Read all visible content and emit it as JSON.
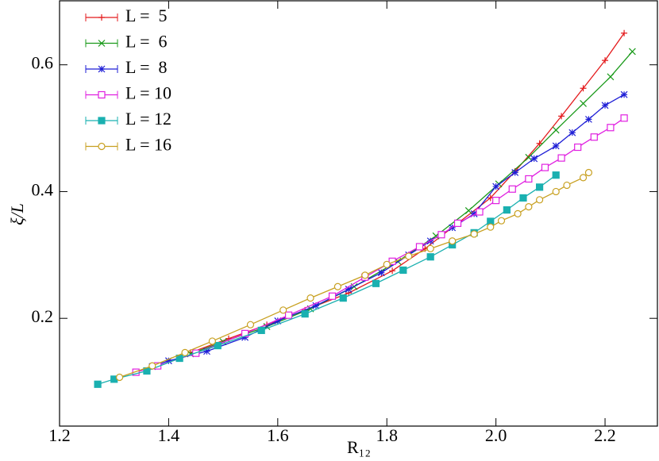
{
  "chart_data": {
    "type": "line",
    "x_label": "R₁₂",
    "y_label": "ξ/L",
    "xlim": [
      1.2,
      2.296
    ],
    "ylim": [
      0.03,
      0.701
    ],
    "xticks": [
      1.2,
      1.4,
      1.6,
      1.8,
      {
        "value": 2,
        "label": "2.0"
      },
      2.2
    ],
    "yticks": [
      0.2,
      0.4,
      0.6
    ],
    "legend": "upper-left",
    "series": [
      {
        "name": "L =  5",
        "color": "#e41a1c",
        "marker": "plus",
        "x": [
          1.44,
          1.51,
          1.58,
          1.65,
          1.73,
          1.81,
          1.87,
          1.93,
          1.99,
          2.035,
          2.08,
          2.12,
          2.16,
          2.2,
          2.235
        ],
        "values": [
          0.146,
          0.168,
          0.19,
          0.213,
          0.24,
          0.275,
          0.31,
          0.35,
          0.39,
          0.432,
          0.476,
          0.519,
          0.563,
          0.607,
          0.65
        ]
      },
      {
        "name": "L =  6",
        "color": "#1a9a1a",
        "marker": "cross",
        "x": [
          1.44,
          1.5,
          1.58,
          1.66,
          1.74,
          1.82,
          1.89,
          1.95,
          2.005,
          2.06,
          2.11,
          2.16,
          2.21,
          2.25
        ],
        "values": [
          0.144,
          0.163,
          0.187,
          0.215,
          0.25,
          0.29,
          0.33,
          0.37,
          0.412,
          0.454,
          0.497,
          0.539,
          0.581,
          0.621
        ]
      },
      {
        "name": "L =  8",
        "color": "#1f1fd6",
        "marker": "star",
        "x": [
          1.37,
          1.4,
          1.47,
          1.54,
          1.6,
          1.67,
          1.73,
          1.79,
          1.84,
          1.88,
          1.92,
          1.96,
          2.0,
          2.035,
          2.07,
          2.11,
          2.14,
          2.17,
          2.2,
          2.235
        ],
        "values": [
          0.124,
          0.133,
          0.148,
          0.17,
          0.196,
          0.22,
          0.246,
          0.272,
          0.3,
          0.322,
          0.343,
          0.365,
          0.408,
          0.43,
          0.452,
          0.472,
          0.493,
          0.514,
          0.536,
          0.553
        ]
      },
      {
        "name": "L = 10",
        "color": "#e020e0",
        "marker": "square-open",
        "x": [
          1.34,
          1.38,
          1.45,
          1.54,
          1.62,
          1.7,
          1.76,
          1.81,
          1.86,
          1.9,
          1.93,
          1.97,
          2.0,
          2.03,
          2.06,
          2.09,
          2.12,
          2.15,
          2.18,
          2.21,
          2.235
        ],
        "values": [
          0.115,
          0.125,
          0.145,
          0.176,
          0.205,
          0.235,
          0.265,
          0.29,
          0.313,
          0.332,
          0.35,
          0.368,
          0.386,
          0.404,
          0.42,
          0.438,
          0.453,
          0.47,
          0.486,
          0.501,
          0.516
        ]
      },
      {
        "name": "L = 12",
        "color": "#1ab0b0",
        "marker": "square",
        "x": [
          1.27,
          1.3,
          1.36,
          1.42,
          1.49,
          1.57,
          1.65,
          1.72,
          1.78,
          1.83,
          1.88,
          1.92,
          1.96,
          1.99,
          2.02,
          2.05,
          2.08,
          2.11
        ],
        "values": [
          0.096,
          0.104,
          0.117,
          0.137,
          0.157,
          0.181,
          0.207,
          0.232,
          0.255,
          0.276,
          0.297,
          0.316,
          0.335,
          0.353,
          0.371,
          0.39,
          0.407,
          0.426
        ]
      },
      {
        "name": "L = 16",
        "color": "#c8a020",
        "marker": "circle-open",
        "x": [
          1.31,
          1.37,
          1.43,
          1.48,
          1.55,
          1.61,
          1.66,
          1.71,
          1.76,
          1.8,
          1.84,
          1.88,
          1.92,
          1.96,
          1.99,
          2.01,
          2.04,
          2.06,
          2.08,
          2.11,
          2.13,
          2.16,
          2.17
        ],
        "values": [
          0.107,
          0.125,
          0.146,
          0.164,
          0.19,
          0.213,
          0.232,
          0.25,
          0.268,
          0.285,
          0.298,
          0.31,
          0.322,
          0.333,
          0.344,
          0.354,
          0.365,
          0.376,
          0.387,
          0.4,
          0.41,
          0.422,
          0.43
        ]
      }
    ]
  }
}
